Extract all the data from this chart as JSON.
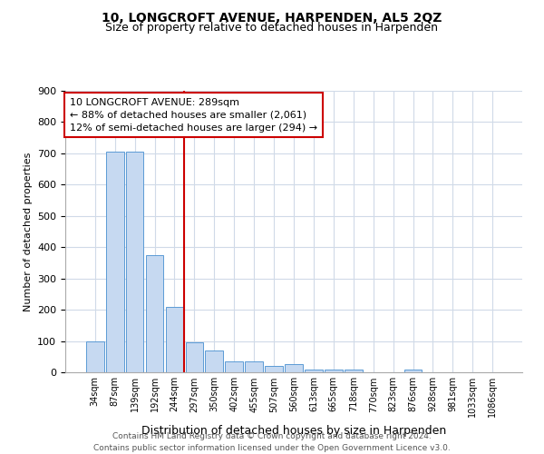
{
  "title": "10, LONGCROFT AVENUE, HARPENDEN, AL5 2QZ",
  "subtitle": "Size of property relative to detached houses in Harpenden",
  "xlabel": "Distribution of detached houses by size in Harpenden",
  "ylabel": "Number of detached properties",
  "footnote": "Contains HM Land Registry data © Crown copyright and database right 2024.\nContains public sector information licensed under the Open Government Licence v3.0.",
  "categories": [
    "34sqm",
    "87sqm",
    "139sqm",
    "192sqm",
    "244sqm",
    "297sqm",
    "350sqm",
    "402sqm",
    "455sqm",
    "507sqm",
    "560sqm",
    "613sqm",
    "665sqm",
    "718sqm",
    "770sqm",
    "823sqm",
    "876sqm",
    "928sqm",
    "981sqm",
    "1033sqm",
    "1086sqm"
  ],
  "values": [
    100,
    705,
    705,
    375,
    210,
    95,
    70,
    35,
    35,
    20,
    25,
    10,
    10,
    10,
    0,
    0,
    10,
    0,
    0,
    0,
    0
  ],
  "bar_color": "#c6d9f1",
  "bar_edge_color": "#5b9bd5",
  "vline_color": "#cc0000",
  "vline_idx": 5,
  "annotation_line1": "10 LONGCROFT AVENUE: 289sqm",
  "annotation_line2": "← 88% of detached houses are smaller (2,061)",
  "annotation_line3": "12% of semi-detached houses are larger (294) →",
  "ylim": [
    0,
    900
  ],
  "yticks": [
    0,
    100,
    200,
    300,
    400,
    500,
    600,
    700,
    800,
    900
  ],
  "background_color": "#ffffff",
  "grid_color": "#d0dae8",
  "title_fontsize": 10,
  "subtitle_fontsize": 9
}
